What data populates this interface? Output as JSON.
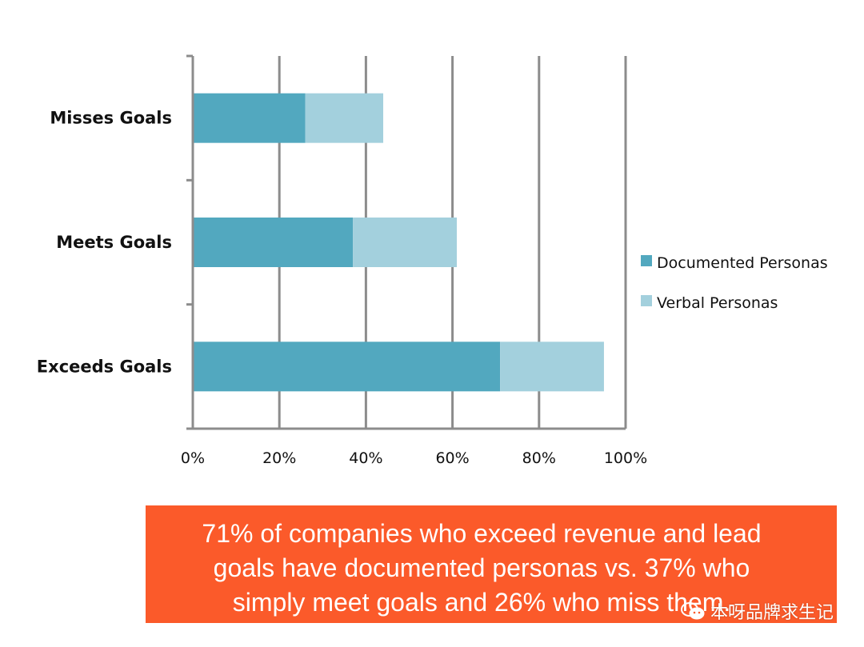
{
  "chart_data": {
    "type": "bar",
    "orientation": "horizontal",
    "stacked": true,
    "categories": [
      "Misses Goals",
      "Meets Goals",
      "Exceeds Goals"
    ],
    "series": [
      {
        "name": "Documented Personas",
        "color": "#52a8bf",
        "values": [
          26,
          37,
          71
        ]
      },
      {
        "name": "Verbal Personas",
        "color": "#a3d0dd",
        "values": [
          18,
          24,
          24
        ]
      }
    ],
    "xlim": [
      0,
      100
    ],
    "x_ticks": [
      "0%",
      "20%",
      "40%",
      "60%",
      "80%",
      "100%"
    ],
    "grid": true,
    "legend_position": "right"
  },
  "banner": {
    "color": "#fb5a2a",
    "lines": [
      "71% of companies who exceed revenue and lead",
      "goals have documented personas vs. 37% who",
      "simply meet goals and 26% who miss them."
    ]
  },
  "watermark": {
    "icon": "wechat-icon",
    "text": "本呀品牌求生记"
  }
}
